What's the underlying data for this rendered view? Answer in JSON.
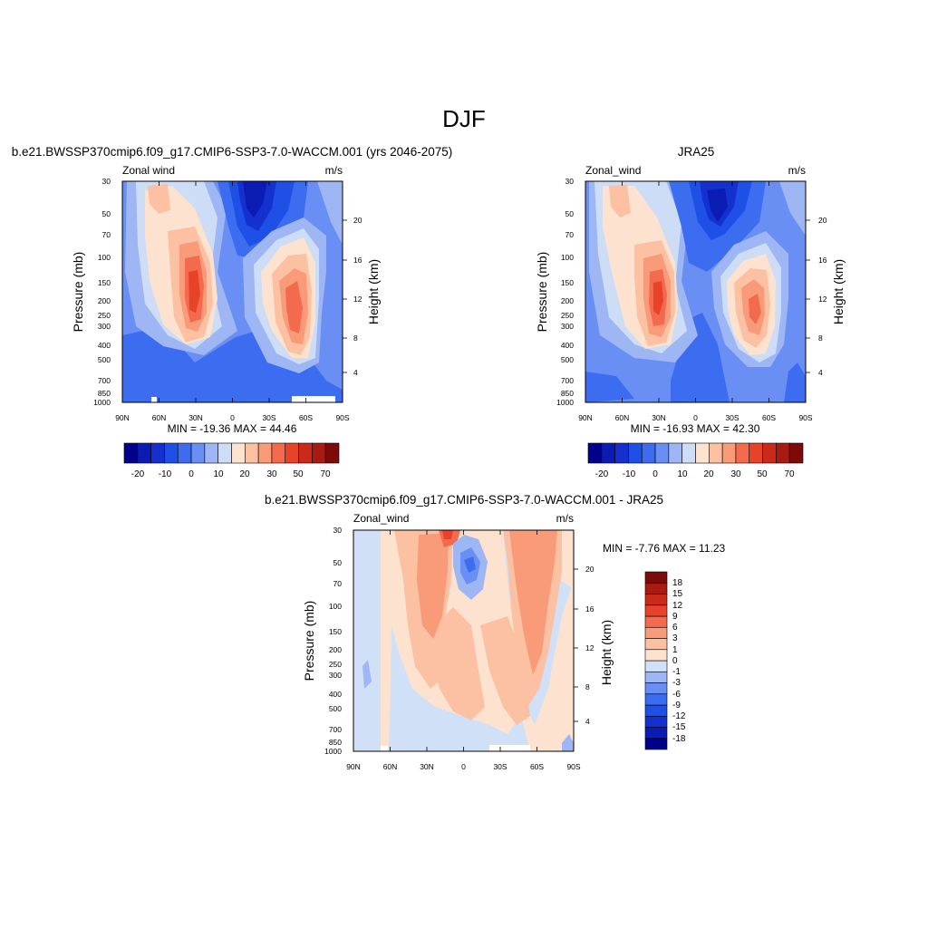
{
  "figure": {
    "title": "DJF"
  },
  "colors": {
    "panel_levels": [
      "#00008b",
      "#0a1cb4",
      "#1431d0",
      "#1e4fe6",
      "#3c6cf0",
      "#6a8ff4",
      "#9fb6f4",
      "#cdddf6",
      "#fde3cf",
      "#fcc0a2",
      "#f99a78",
      "#f46a4e",
      "#e8432a",
      "#cc2a18",
      "#a81b10",
      "#7c0a08"
    ],
    "diff_levels": [
      "#00008b",
      "#0a1cb4",
      "#1431d0",
      "#1e4fe6",
      "#3c6cf0",
      "#6a8ff4",
      "#9fb6f4",
      "#d0e0f6",
      "#fde3cf",
      "#fcc0a2",
      "#f99a78",
      "#f46a4e",
      "#e8432a",
      "#cc2a18",
      "#a81b10",
      "#7c0a08"
    ]
  },
  "panels": [
    {
      "name": "model",
      "title": "b.e21.BWSSP370cmip6.f09_g17.CMIP6-SSP3-7.0-WACCM.001 (yrs 2046-2075)",
      "left_label": "Zonal wind",
      "right_label": "m/s",
      "ylabel": "Pressure (mb)",
      "ylabel_right": "Height (km)",
      "min_max": "MIN = -19.36  MAX =  44.46"
    },
    {
      "name": "obs",
      "title": "JRA25",
      "left_label": "Zonal_wind",
      "right_label": "m/s",
      "ylabel": "Pressure (mb)",
      "ylabel_right": "Height (km)",
      "min_max": "MIN = -16.93  MAX =  42.30"
    },
    {
      "name": "diff",
      "title": "b.e21.BWSSP370cmip6.f09_g17.CMIP6-SSP3-7.0-WACCM.001 - JRA25",
      "left_label": "Zonal_wind",
      "right_label": "m/s",
      "ylabel": "Pressure (mb)",
      "ylabel_right": "Height (km)",
      "min_max": "MIN =  -7.76  MAX =  11.23"
    }
  ],
  "chart_data": [
    {
      "type": "heatmap",
      "title": "b.e21.BWSSP370cmip6.f09_g17.CMIP6-SSP3-7.0-WACCM.001 (yrs 2046-2075)",
      "xlabel": "",
      "ylabel": "Pressure (mb)",
      "ylabel_right": "Height (km)",
      "x_ticks": [
        "90N",
        "60N",
        "30N",
        "0",
        "30S",
        "60S",
        "90S"
      ],
      "y_ticks": [
        "30",
        "50",
        "70",
        "100",
        "150",
        "200",
        "250",
        "300",
        "400",
        "500",
        "700",
        "850",
        "1000"
      ],
      "y_ticks_right": [
        "20",
        "16",
        "12",
        "8",
        "4"
      ],
      "y_scale": "log",
      "colorbar_labels": [
        "-20",
        "-10",
        "0",
        "10",
        "20",
        "30",
        "50",
        "70"
      ],
      "min": -19.36,
      "max": 44.46,
      "features": [
        {
          "lat": -30,
          "p": 170,
          "value": 42
        },
        {
          "lat": 15,
          "p": 30,
          "value": -19
        },
        {
          "lat": 50,
          "p": 220,
          "value": 35
        },
        {
          "lat": 65,
          "p": 30,
          "value": 12
        }
      ]
    },
    {
      "type": "heatmap",
      "title": "JRA25",
      "xlabel": "",
      "ylabel": "Pressure (mb)",
      "ylabel_right": "Height (km)",
      "x_ticks": [
        "90N",
        "60N",
        "30N",
        "0",
        "30S",
        "60S",
        "90S"
      ],
      "y_ticks": [
        "30",
        "50",
        "70",
        "100",
        "150",
        "200",
        "250",
        "300",
        "400",
        "500",
        "700",
        "850",
        "1000"
      ],
      "y_ticks_right": [
        "20",
        "16",
        "12",
        "8",
        "4"
      ],
      "y_scale": "log",
      "colorbar_labels": [
        "-20",
        "-10",
        "0",
        "10",
        "20",
        "30",
        "50",
        "70"
      ],
      "min": -16.93,
      "max": 42.3,
      "features": [
        {
          "lat": -30,
          "p": 180,
          "value": 40
        },
        {
          "lat": 15,
          "p": 35,
          "value": -16
        },
        {
          "lat": 45,
          "p": 200,
          "value": 30
        },
        {
          "lat": 65,
          "p": 40,
          "value": 5
        }
      ]
    },
    {
      "type": "heatmap",
      "title": "b.e21.BWSSP370cmip6.f09_g17.CMIP6-SSP3-7.0-WACCM.001 - JRA25",
      "xlabel": "",
      "ylabel": "Pressure (mb)",
      "ylabel_right": "Height (km)",
      "x_ticks": [
        "90N",
        "60N",
        "30N",
        "0",
        "30S",
        "60S",
        "90S"
      ],
      "y_ticks": [
        "30",
        "50",
        "70",
        "100",
        "150",
        "200",
        "250",
        "300",
        "400",
        "500",
        "700",
        "850",
        "1000"
      ],
      "y_ticks_right": [
        "20",
        "16",
        "12",
        "8",
        "4"
      ],
      "y_scale": "log",
      "colorbar_labels": [
        "18",
        "15",
        "12",
        "9",
        "6",
        "3",
        "1",
        "0",
        "-1",
        "-3",
        "-6",
        "-9",
        "-12",
        "-15",
        "-18"
      ],
      "min": -7.76,
      "max": 11.23,
      "features": [
        {
          "lat": -40,
          "p": 70,
          "value": 9
        },
        {
          "lat": 10,
          "p": 30,
          "value": 10
        },
        {
          "lat": 0,
          "p": 50,
          "value": -7
        },
        {
          "lat": 55,
          "p": 60,
          "value": 8
        }
      ]
    }
  ]
}
